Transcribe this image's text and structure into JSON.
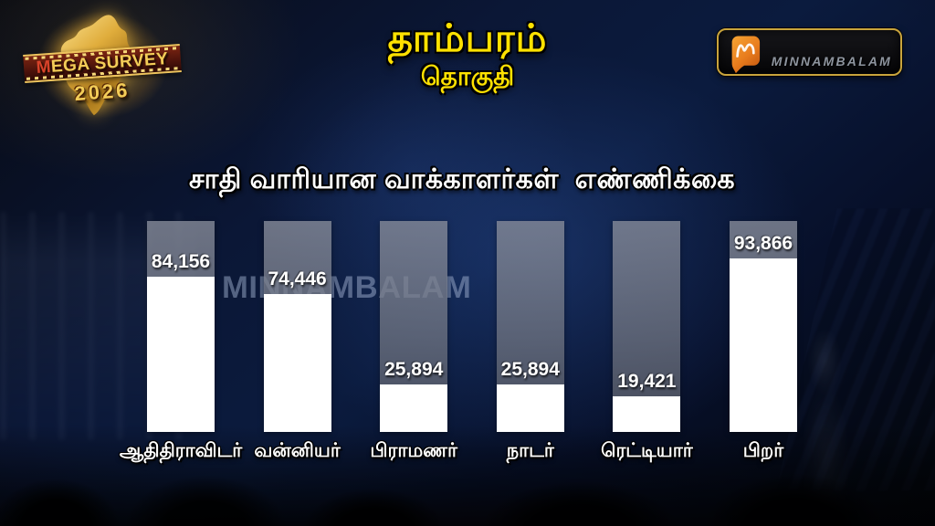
{
  "brand": {
    "mega_survey": {
      "line1": "MEGA SURVEY",
      "year": "2026"
    },
    "minnambalam": {
      "logo_text": "MINNAMBALAM"
    }
  },
  "header": {
    "title": "தாம்பரம்",
    "subtitle": "தொகுதி"
  },
  "watermark_text": "MINNAMBALAM",
  "colors": {
    "title_yellow": "#ffe100",
    "heading_white": "#ffffff",
    "bar_fill": "#ffffff",
    "bar_track_gray": "#7d8292",
    "background_navy": "#0b1736",
    "logo_gold": "#f3cd58",
    "logo_banner_red": "#7c2512",
    "minnambalam_orange": "#ef8c26",
    "minnambalam_border_gold": "#c9a43c",
    "watermark_blue_gray": "#acbcda"
  },
  "chart_data": {
    "type": "bar",
    "title": "சாதி வாரியான வாக்காளர்கள்  எண்ணிக்கை",
    "categories": [
      "ஆதிதிராவிடர்",
      "வன்னியர்",
      "பிராமணர்",
      "நாடர்",
      "ரெட்டியார்",
      "பிறர்"
    ],
    "values": [
      84156,
      74446,
      25894,
      25894,
      19421,
      93866
    ],
    "value_labels": [
      "84,156",
      "74,446",
      "25,894",
      "25,894",
      "19,421",
      "93,866"
    ],
    "xlabel": "",
    "ylabel": "",
    "ylim": [
      0,
      100000
    ],
    "grid": false,
    "legend": "none",
    "bar_color": "#ffffff",
    "track_color": "#7d8292"
  }
}
